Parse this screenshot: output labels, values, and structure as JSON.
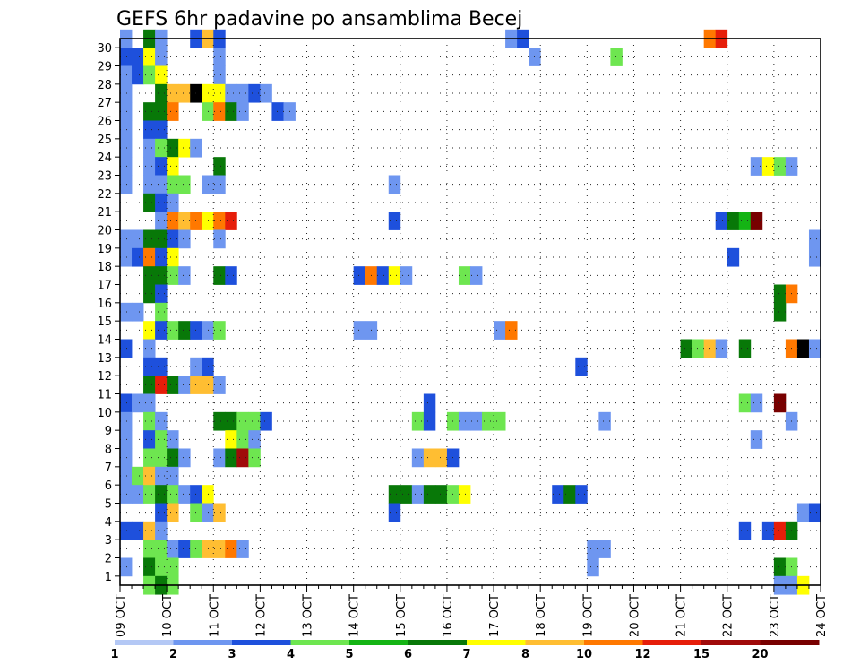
{
  "chart_data": {
    "type": "heatmap",
    "title": "GEFS 6hr padavine po ansamblima Becej",
    "x_ticks": [
      "09 OCT",
      "10 OCT",
      "11 OCT",
      "12 OCT",
      "13 OCT",
      "14 OCT",
      "15 OCT",
      "16 OCT",
      "17 OCT",
      "18 OCT",
      "19 OCT",
      "20 OCT",
      "21 OCT",
      "22 OCT",
      "23 OCT",
      "24 OCT"
    ],
    "y_ticks": [
      "1",
      "2",
      "3",
      "4",
      "5",
      "6",
      "7",
      "8",
      "9",
      "10",
      "11",
      "12",
      "13",
      "14",
      "15",
      "16",
      "17",
      "18",
      "19",
      "20",
      "21",
      "22",
      "23",
      "24",
      "25",
      "26",
      "27",
      "28",
      "29",
      "30"
    ],
    "x_range_steps": [
      0,
      60
    ],
    "y_range": [
      0,
      30
    ],
    "step_hours": 6,
    "colorbar": {
      "labels": [
        "1",
        "2",
        "3",
        "4",
        "5",
        "6",
        "7",
        "8",
        "10",
        "12",
        "15",
        "20"
      ],
      "colors": [
        "#b4c8f5",
        "#6e96f0",
        "#1e50dc",
        "#6ee650",
        "#14b414",
        "#087808",
        "#ffff00",
        "#ffbe32",
        "#ff7800",
        "#e61e0a",
        "#a00a0a",
        "#780000"
      ]
    },
    "grid": true,
    "cells": [
      [
        30,
        0,
        1
      ],
      [
        30,
        2,
        5
      ],
      [
        30,
        3,
        1
      ],
      [
        30,
        6,
        2
      ],
      [
        30,
        7,
        7
      ],
      [
        30,
        8,
        2
      ],
      [
        30,
        33,
        1
      ],
      [
        30,
        34,
        2
      ],
      [
        30,
        50,
        8
      ],
      [
        30,
        51,
        9
      ],
      [
        29,
        0,
        2
      ],
      [
        29,
        1,
        2
      ],
      [
        29,
        2,
        6
      ],
      [
        29,
        3,
        1
      ],
      [
        29,
        8,
        1
      ],
      [
        29,
        35,
        1
      ],
      [
        29,
        42,
        3
      ],
      [
        28,
        0,
        1
      ],
      [
        28,
        1,
        2
      ],
      [
        28,
        2,
        3
      ],
      [
        28,
        3,
        6
      ],
      [
        28,
        8,
        1
      ],
      [
        27,
        0,
        1
      ],
      [
        27,
        3,
        5
      ],
      [
        27,
        4,
        7
      ],
      [
        27,
        5,
        7
      ],
      [
        27,
        6,
        12
      ],
      [
        27,
        7,
        6
      ],
      [
        27,
        8,
        6
      ],
      [
        27,
        9,
        1
      ],
      [
        27,
        10,
        1
      ],
      [
        27,
        11,
        2
      ],
      [
        27,
        12,
        1
      ],
      [
        26,
        0,
        1
      ],
      [
        26,
        2,
        5
      ],
      [
        26,
        3,
        5
      ],
      [
        26,
        4,
        8
      ],
      [
        26,
        7,
        3
      ],
      [
        26,
        8,
        8
      ],
      [
        26,
        9,
        5
      ],
      [
        26,
        10,
        1
      ],
      [
        26,
        13,
        2
      ],
      [
        26,
        14,
        1
      ],
      [
        25,
        0,
        1
      ],
      [
        25,
        2,
        2
      ],
      [
        25,
        3,
        2
      ],
      [
        24,
        0,
        1
      ],
      [
        24,
        2,
        1
      ],
      [
        24,
        3,
        3
      ],
      [
        24,
        4,
        5
      ],
      [
        24,
        5,
        6
      ],
      [
        24,
        6,
        1
      ],
      [
        23,
        0,
        1
      ],
      [
        23,
        2,
        1
      ],
      [
        23,
        3,
        2
      ],
      [
        23,
        4,
        6
      ],
      [
        23,
        8,
        5
      ],
      [
        23,
        54,
        1
      ],
      [
        23,
        55,
        6
      ],
      [
        23,
        56,
        3
      ],
      [
        23,
        57,
        1
      ],
      [
        22,
        0,
        1
      ],
      [
        22,
        2,
        1
      ],
      [
        22,
        3,
        1
      ],
      [
        22,
        4,
        3
      ],
      [
        22,
        5,
        3
      ],
      [
        22,
        7,
        1
      ],
      [
        22,
        8,
        1
      ],
      [
        22,
        23,
        1
      ],
      [
        21,
        2,
        5
      ],
      [
        21,
        3,
        2
      ],
      [
        21,
        4,
        1
      ],
      [
        20,
        3,
        1
      ],
      [
        20,
        4,
        8
      ],
      [
        20,
        5,
        7
      ],
      [
        20,
        6,
        8
      ],
      [
        20,
        7,
        6
      ],
      [
        20,
        8,
        8
      ],
      [
        20,
        9,
        9
      ],
      [
        20,
        23,
        2
      ],
      [
        20,
        51,
        2
      ],
      [
        20,
        52,
        5
      ],
      [
        20,
        53,
        4
      ],
      [
        20,
        54,
        11
      ],
      [
        19,
        0,
        1
      ],
      [
        19,
        1,
        1
      ],
      [
        19,
        2,
        5
      ],
      [
        19,
        3,
        5
      ],
      [
        19,
        4,
        2
      ],
      [
        19,
        5,
        1
      ],
      [
        19,
        8,
        1
      ],
      [
        19,
        59,
        1
      ],
      [
        18,
        0,
        1
      ],
      [
        18,
        1,
        2
      ],
      [
        18,
        2,
        8
      ],
      [
        18,
        3,
        2
      ],
      [
        18,
        4,
        6
      ],
      [
        18,
        52,
        2
      ],
      [
        18,
        59,
        1
      ],
      [
        17,
        2,
        5
      ],
      [
        17,
        3,
        5
      ],
      [
        17,
        4,
        3
      ],
      [
        17,
        5,
        1
      ],
      [
        17,
        8,
        5
      ],
      [
        17,
        9,
        2
      ],
      [
        17,
        20,
        2
      ],
      [
        17,
        21,
        8
      ],
      [
        17,
        22,
        2
      ],
      [
        17,
        23,
        6
      ],
      [
        17,
        24,
        1
      ],
      [
        17,
        29,
        3
      ],
      [
        17,
        30,
        1
      ],
      [
        16,
        2,
        5
      ],
      [
        16,
        3,
        2
      ],
      [
        16,
        56,
        5
      ],
      [
        16,
        57,
        8
      ],
      [
        15,
        0,
        1
      ],
      [
        15,
        1,
        1
      ],
      [
        15,
        3,
        3
      ],
      [
        15,
        56,
        5
      ],
      [
        14,
        2,
        6
      ],
      [
        14,
        3,
        2
      ],
      [
        14,
        4,
        3
      ],
      [
        14,
        5,
        5
      ],
      [
        14,
        6,
        2
      ],
      [
        14,
        7,
        1
      ],
      [
        14,
        8,
        3
      ],
      [
        14,
        20,
        1
      ],
      [
        14,
        21,
        1
      ],
      [
        14,
        32,
        1
      ],
      [
        14,
        33,
        8
      ],
      [
        13,
        0,
        2
      ],
      [
        13,
        2,
        1
      ],
      [
        13,
        48,
        5
      ],
      [
        13,
        49,
        3
      ],
      [
        13,
        50,
        7
      ],
      [
        13,
        51,
        1
      ],
      [
        13,
        53,
        5
      ],
      [
        13,
        57,
        8
      ],
      [
        13,
        58,
        12
      ],
      [
        13,
        59,
        1
      ],
      [
        12,
        2,
        2
      ],
      [
        12,
        3,
        2
      ],
      [
        12,
        6,
        1
      ],
      [
        12,
        7,
        2
      ],
      [
        12,
        39,
        2
      ],
      [
        11,
        2,
        5
      ],
      [
        11,
        3,
        9
      ],
      [
        11,
        4,
        5
      ],
      [
        11,
        5,
        1
      ],
      [
        11,
        6,
        7
      ],
      [
        11,
        7,
        7
      ],
      [
        11,
        8,
        1
      ],
      [
        10,
        0,
        2
      ],
      [
        10,
        1,
        1
      ],
      [
        10,
        2,
        1
      ],
      [
        10,
        26,
        2
      ],
      [
        10,
        53,
        3
      ],
      [
        10,
        54,
        1
      ],
      [
        10,
        56,
        11
      ],
      [
        9,
        0,
        1
      ],
      [
        9,
        2,
        3
      ],
      [
        9,
        3,
        1
      ],
      [
        9,
        8,
        5
      ],
      [
        9,
        9,
        5
      ],
      [
        9,
        10,
        3
      ],
      [
        9,
        11,
        3
      ],
      [
        9,
        12,
        2
      ],
      [
        9,
        25,
        3
      ],
      [
        9,
        26,
        2
      ],
      [
        9,
        28,
        3
      ],
      [
        9,
        29,
        1
      ],
      [
        9,
        30,
        1
      ],
      [
        9,
        31,
        3
      ],
      [
        9,
        32,
        3
      ],
      [
        9,
        41,
        1
      ],
      [
        9,
        57,
        1
      ],
      [
        8,
        0,
        1
      ],
      [
        8,
        2,
        2
      ],
      [
        8,
        3,
        3
      ],
      [
        8,
        4,
        1
      ],
      [
        8,
        9,
        6
      ],
      [
        8,
        10,
        3
      ],
      [
        8,
        11,
        1
      ],
      [
        8,
        54,
        1
      ],
      [
        7,
        0,
        1
      ],
      [
        7,
        2,
        3
      ],
      [
        7,
        3,
        3
      ],
      [
        7,
        4,
        5
      ],
      [
        7,
        5,
        1
      ],
      [
        7,
        8,
        1
      ],
      [
        7,
        9,
        5
      ],
      [
        7,
        10,
        10
      ],
      [
        7,
        11,
        3
      ],
      [
        7,
        25,
        1
      ],
      [
        7,
        26,
        7
      ],
      [
        7,
        27,
        7
      ],
      [
        7,
        28,
        2
      ],
      [
        6,
        0,
        1
      ],
      [
        6,
        1,
        3
      ],
      [
        6,
        2,
        7
      ],
      [
        6,
        3,
        1
      ],
      [
        6,
        4,
        1
      ],
      [
        5,
        0,
        1
      ],
      [
        5,
        1,
        1
      ],
      [
        5,
        2,
        3
      ],
      [
        5,
        3,
        5
      ],
      [
        5,
        4,
        3
      ],
      [
        5,
        5,
        1
      ],
      [
        5,
        6,
        2
      ],
      [
        5,
        7,
        6
      ],
      [
        5,
        23,
        5
      ],
      [
        5,
        24,
        5
      ],
      [
        5,
        25,
        1
      ],
      [
        5,
        26,
        5
      ],
      [
        5,
        27,
        5
      ],
      [
        5,
        28,
        3
      ],
      [
        5,
        29,
        6
      ],
      [
        5,
        37,
        2
      ],
      [
        5,
        38,
        5
      ],
      [
        5,
        39,
        2
      ],
      [
        4,
        3,
        2
      ],
      [
        4,
        4,
        7
      ],
      [
        4,
        6,
        3
      ],
      [
        4,
        7,
        1
      ],
      [
        4,
        8,
        7
      ],
      [
        4,
        23,
        2
      ],
      [
        4,
        58,
        1
      ],
      [
        4,
        59,
        2
      ],
      [
        3,
        0,
        2
      ],
      [
        3,
        1,
        2
      ],
      [
        3,
        2,
        7
      ],
      [
        3,
        3,
        1
      ],
      [
        3,
        53,
        2
      ],
      [
        3,
        55,
        2
      ],
      [
        3,
        56,
        9
      ],
      [
        3,
        57,
        5
      ],
      [
        2,
        2,
        3
      ],
      [
        2,
        3,
        3
      ],
      [
        2,
        4,
        1
      ],
      [
        2,
        5,
        2
      ],
      [
        2,
        6,
        3
      ],
      [
        2,
        7,
        7
      ],
      [
        2,
        8,
        7
      ],
      [
        2,
        9,
        8
      ],
      [
        2,
        10,
        1
      ],
      [
        2,
        40,
        1
      ],
      [
        2,
        41,
        1
      ],
      [
        1,
        0,
        1
      ],
      [
        1,
        2,
        5
      ],
      [
        1,
        3,
        3
      ],
      [
        1,
        4,
        3
      ],
      [
        1,
        40,
        1
      ],
      [
        1,
        56,
        5
      ],
      [
        1,
        57,
        3
      ],
      [
        0,
        2,
        3
      ],
      [
        0,
        3,
        5
      ],
      [
        0,
        4,
        3
      ],
      [
        0,
        56,
        1
      ],
      [
        0,
        57,
        1
      ],
      [
        0,
        58,
        6
      ]
    ]
  }
}
